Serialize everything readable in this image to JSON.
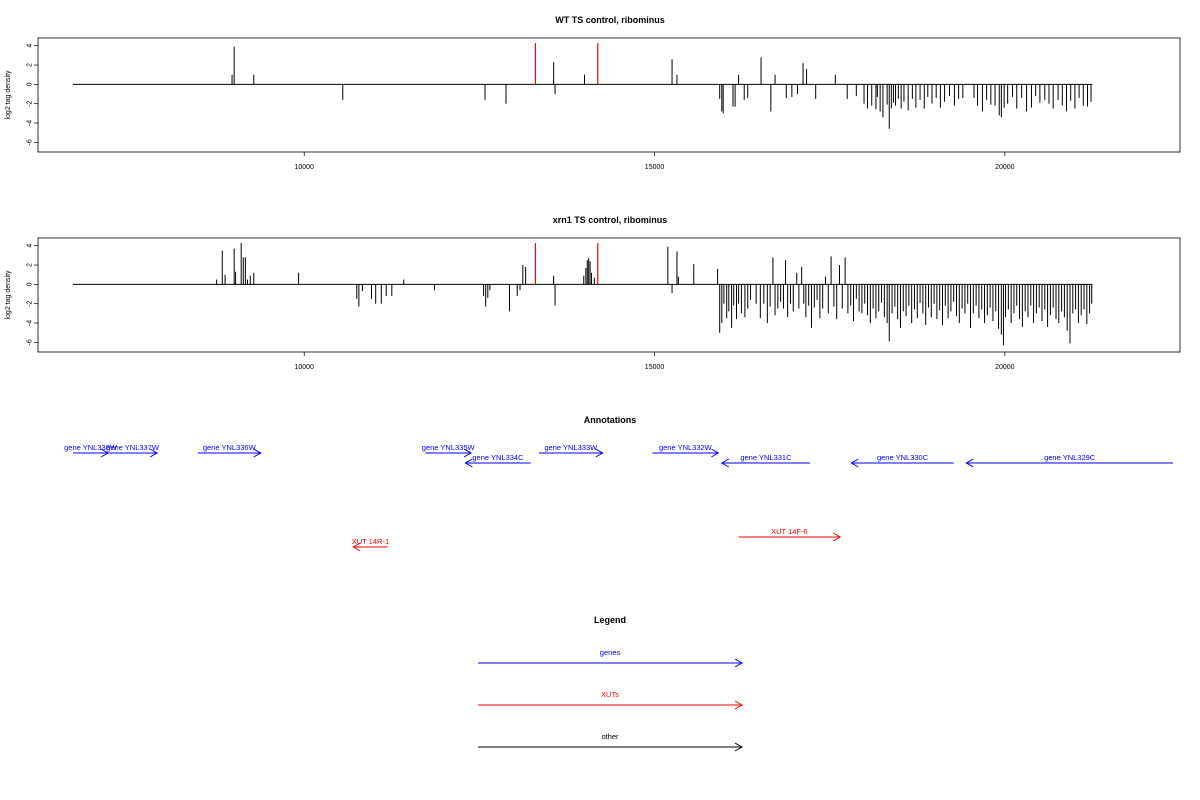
{
  "colors": {
    "gene": "#0000ff",
    "xut": "#ff0000",
    "other": "#000000",
    "marker": "#ff0000",
    "frame": "#000000"
  },
  "x_range": [
    6200,
    22500
  ],
  "marker_positions": [
    13300,
    14190
  ],
  "chart_data": [
    {
      "type": "bar",
      "title": "WT TS control, ribominus",
      "xlabel": "",
      "ylabel": "log2 tag density",
      "xticks": [
        10000,
        15000,
        20000
      ],
      "yticks": [
        4,
        2,
        0,
        -2,
        -4,
        -6
      ],
      "ylim": [
        -7,
        4.8
      ],
      "baseline": [
        6700,
        21250
      ],
      "bars": [
        [
          8970,
          1.0
        ],
        [
          9000,
          3.9
        ],
        [
          9280,
          1.0
        ],
        [
          10550,
          -1.6
        ],
        [
          12580,
          -1.6
        ],
        [
          12880,
          -2.0
        ],
        [
          13560,
          2.3
        ],
        [
          13580,
          -1.0
        ],
        [
          14000,
          1.0
        ],
        [
          15250,
          2.6
        ],
        [
          15320,
          1.0
        ],
        [
          15930,
          -1.5
        ],
        [
          15960,
          -2.8
        ],
        [
          15980,
          -3.0
        ],
        [
          16120,
          -2.3
        ],
        [
          16150,
          -2.3
        ],
        [
          16200,
          1.0
        ],
        [
          16280,
          -1.6
        ],
        [
          16330,
          -1.4
        ],
        [
          16520,
          2.8
        ],
        [
          16660,
          -2.8
        ],
        [
          16720,
          1.0
        ],
        [
          16880,
          -1.4
        ],
        [
          16960,
          -1.3
        ],
        [
          17040,
          -1.0
        ],
        [
          17120,
          2.2
        ],
        [
          17170,
          1.6
        ],
        [
          17300,
          -1.5
        ],
        [
          17580,
          1.0
        ],
        [
          17750,
          -1.5
        ],
        [
          17880,
          -1.2
        ],
        [
          17990,
          -2.0
        ],
        [
          18040,
          -2.5
        ],
        [
          18100,
          -2.2
        ],
        [
          18160,
          -2.6
        ],
        [
          18180,
          -1.3
        ],
        [
          18220,
          -2.8
        ],
        [
          18260,
          -3.4
        ],
        [
          18320,
          -2.1
        ],
        [
          18350,
          -4.6
        ],
        [
          18380,
          -2.5
        ],
        [
          18410,
          -1.9
        ],
        [
          18440,
          -2.2
        ],
        [
          18480,
          -1.5
        ],
        [
          18520,
          -2.5
        ],
        [
          18560,
          -1.8
        ],
        [
          18620,
          -2.7
        ],
        [
          18680,
          -1.5
        ],
        [
          18730,
          -2.4
        ],
        [
          18790,
          -1.6
        ],
        [
          18850,
          -2.5
        ],
        [
          18900,
          -1.3
        ],
        [
          18960,
          -2.0
        ],
        [
          19020,
          -1.4
        ],
        [
          19080,
          -2.4
        ],
        [
          19140,
          -1.8
        ],
        [
          19210,
          -1.2
        ],
        [
          19280,
          -2.2
        ],
        [
          19340,
          -1.5
        ],
        [
          19400,
          -1.4
        ],
        [
          19560,
          -1.4
        ],
        [
          19610,
          -2.2
        ],
        [
          19680,
          -2.8
        ],
        [
          19740,
          -1.6
        ],
        [
          19800,
          -2.1
        ],
        [
          19860,
          -2.2
        ],
        [
          19920,
          -3.2
        ],
        [
          19950,
          -3.4
        ],
        [
          19990,
          -2.4
        ],
        [
          20040,
          -2.0
        ],
        [
          20110,
          -1.3
        ],
        [
          20170,
          -2.5
        ],
        [
          20240,
          -1.4
        ],
        [
          20310,
          -2.8
        ],
        [
          20380,
          -2.4
        ],
        [
          20440,
          -1.2
        ],
        [
          20500,
          -1.9
        ],
        [
          20570,
          -1.6
        ],
        [
          20630,
          -2.0
        ],
        [
          20690,
          -2.5
        ],
        [
          20760,
          -1.6
        ],
        [
          20820,
          -2.2
        ],
        [
          20880,
          -2.8
        ],
        [
          20940,
          -1.7
        ],
        [
          21000,
          -2.5
        ],
        [
          21060,
          -1.4
        ],
        [
          21120,
          -2.2
        ],
        [
          21180,
          -2.3
        ],
        [
          21230,
          -1.8
        ]
      ]
    },
    {
      "type": "bar",
      "title": "xrn1 TS control, ribominus",
      "xlabel": "",
      "ylabel": "log2 tag density",
      "xticks": [
        10000,
        15000,
        20000
      ],
      "yticks": [
        4,
        2,
        0,
        -2,
        -4,
        -6
      ],
      "ylim": [
        -7,
        4.8
      ],
      "baseline": [
        6700,
        21250
      ],
      "bars": [
        [
          8750,
          0.5
        ],
        [
          8830,
          3.5
        ],
        [
          8870,
          1.0
        ],
        [
          9000,
          3.7
        ],
        [
          9020,
          1.3
        ],
        [
          9100,
          4.3
        ],
        [
          9130,
          2.8
        ],
        [
          9160,
          2.8
        ],
        [
          9190,
          0.5
        ],
        [
          9230,
          0.9
        ],
        [
          9280,
          1.2
        ],
        [
          9920,
          1.2
        ],
        [
          10750,
          -1.5
        ],
        [
          10780,
          -2.3
        ],
        [
          10830,
          -0.7
        ],
        [
          10960,
          -1.5
        ],
        [
          11020,
          -2.0
        ],
        [
          11100,
          -2.0
        ],
        [
          11170,
          -1.2
        ],
        [
          11250,
          -1.2
        ],
        [
          11420,
          0.5
        ],
        [
          11860,
          -0.6
        ],
        [
          12560,
          -1.2
        ],
        [
          12590,
          -2.3
        ],
        [
          12620,
          -1.4
        ],
        [
          12650,
          -0.6
        ],
        [
          12930,
          -2.8
        ],
        [
          13040,
          -1.2
        ],
        [
          13080,
          -0.6
        ],
        [
          13120,
          2.0
        ],
        [
          13160,
          1.8
        ],
        [
          13560,
          0.9
        ],
        [
          13580,
          -2.2
        ],
        [
          13990,
          0.9
        ],
        [
          14020,
          1.7
        ],
        [
          14040,
          2.5
        ],
        [
          14060,
          2.7
        ],
        [
          14080,
          2.4
        ],
        [
          14100,
          1.2
        ],
        [
          14140,
          0.7
        ],
        [
          15190,
          3.9
        ],
        [
          15250,
          -0.9
        ],
        [
          15320,
          3.4
        ],
        [
          15340,
          0.8
        ],
        [
          15560,
          2.1
        ],
        [
          15900,
          1.6
        ],
        [
          15930,
          -5.0
        ],
        [
          15960,
          -4.0
        ],
        [
          15990,
          -2.0
        ],
        [
          16030,
          -3.5
        ],
        [
          16060,
          -2.8
        ],
        [
          16100,
          -4.5
        ],
        [
          16130,
          -2.2
        ],
        [
          16170,
          -3.6
        ],
        [
          16200,
          -2.0
        ],
        [
          16240,
          -3.0
        ],
        [
          16290,
          -3.4
        ],
        [
          16330,
          -2.5
        ],
        [
          16370,
          -1.6
        ],
        [
          16450,
          -2.0
        ],
        [
          16510,
          -3.5
        ],
        [
          16560,
          -2.0
        ],
        [
          16610,
          -4.0
        ],
        [
          16650,
          -2.3
        ],
        [
          16690,
          2.8
        ],
        [
          16720,
          -3.2
        ],
        [
          16760,
          -2.5
        ],
        [
          16800,
          -1.8
        ],
        [
          16840,
          -2.5
        ],
        [
          16870,
          2.5
        ],
        [
          16900,
          -3.4
        ],
        [
          16940,
          -2.0
        ],
        [
          16980,
          -2.8
        ],
        [
          17030,
          1.2
        ],
        [
          17060,
          -2.5
        ],
        [
          17100,
          1.8
        ],
        [
          17130,
          -2.0
        ],
        [
          17160,
          -3.4
        ],
        [
          17200,
          -2.2
        ],
        [
          17240,
          -4.5
        ],
        [
          17280,
          -2.4
        ],
        [
          17320,
          -1.6
        ],
        [
          17360,
          -3.5
        ],
        [
          17400,
          -2.5
        ],
        [
          17440,
          0.8
        ],
        [
          17480,
          -3.0
        ],
        [
          17520,
          2.9
        ],
        [
          17560,
          -2.3
        ],
        [
          17600,
          -3.6
        ],
        [
          17640,
          2.0
        ],
        [
          17680,
          -2.5
        ],
        [
          17720,
          2.8
        ],
        [
          17760,
          -3.0
        ],
        [
          17800,
          -2.2
        ],
        [
          17840,
          -3.8
        ],
        [
          17880,
          -1.5
        ],
        [
          17920,
          -2.8
        ],
        [
          17960,
          -3.0
        ],
        [
          18000,
          -2.0
        ],
        [
          18040,
          -3.2
        ],
        [
          18080,
          -4.0
        ],
        [
          18120,
          -2.5
        ],
        [
          18160,
          -3.5
        ],
        [
          18200,
          -2.8
        ],
        [
          18240,
          -1.9
        ],
        [
          18280,
          -3.4
        ],
        [
          18320,
          -4.0
        ],
        [
          18350,
          -5.9
        ],
        [
          18390,
          -3.0
        ],
        [
          18430,
          -2.3
        ],
        [
          18470,
          -3.6
        ],
        [
          18510,
          -4.5
        ],
        [
          18550,
          -2.8
        ],
        [
          18590,
          -3.3
        ],
        [
          18630,
          -2.2
        ],
        [
          18670,
          -4.0
        ],
        [
          18710,
          -2.6
        ],
        [
          18750,
          -3.5
        ],
        [
          18790,
          -1.9
        ],
        [
          18830,
          -3.0
        ],
        [
          18870,
          -4.2
        ],
        [
          18910,
          -2.4
        ],
        [
          18950,
          -3.4
        ],
        [
          18990,
          -2.0
        ],
        [
          19030,
          -3.6
        ],
        [
          19070,
          -2.7
        ],
        [
          19110,
          -4.2
        ],
        [
          19150,
          -2.2
        ],
        [
          19190,
          -3.5
        ],
        [
          19230,
          -2.8
        ],
        [
          19270,
          -1.8
        ],
        [
          19310,
          -3.3
        ],
        [
          19350,
          -4.0
        ],
        [
          19390,
          -2.5
        ],
        [
          19430,
          -3.0
        ],
        [
          19470,
          -2.0
        ],
        [
          19510,
          -4.5
        ],
        [
          19550,
          -3.0
        ],
        [
          19590,
          -2.2
        ],
        [
          19630,
          -3.5
        ],
        [
          19670,
          -2.6
        ],
        [
          19710,
          -4.0
        ],
        [
          19750,
          -3.2
        ],
        [
          19790,
          -2.4
        ],
        [
          19830,
          -3.8
        ],
        [
          19870,
          -2.8
        ],
        [
          19910,
          -4.6
        ],
        [
          19950,
          -5.2
        ],
        [
          19980,
          -6.3
        ],
        [
          20010,
          -3.4
        ],
        [
          20050,
          -2.6
        ],
        [
          20090,
          -4.0
        ],
        [
          20130,
          -3.0
        ],
        [
          20170,
          -2.2
        ],
        [
          20210,
          -3.6
        ],
        [
          20250,
          -4.4
        ],
        [
          20290,
          -2.8
        ],
        [
          20330,
          -3.4
        ],
        [
          20370,
          -2.2
        ],
        [
          20410,
          -4.0
        ],
        [
          20450,
          -3.0
        ],
        [
          20490,
          -2.4
        ],
        [
          20530,
          -3.8
        ],
        [
          20570,
          -2.6
        ],
        [
          20610,
          -4.4
        ],
        [
          20650,
          -3.2
        ],
        [
          20690,
          -2.4
        ],
        [
          20730,
          -3.6
        ],
        [
          20770,
          -4.0
        ],
        [
          20810,
          -2.8
        ],
        [
          20850,
          -3.4
        ],
        [
          20890,
          -4.8
        ],
        [
          20930,
          -6.1
        ],
        [
          20970,
          -3.0
        ],
        [
          21010,
          -2.6
        ],
        [
          21050,
          -4.0
        ],
        [
          21090,
          -3.2
        ],
        [
          21130,
          -2.6
        ],
        [
          21170,
          -4.1
        ],
        [
          21210,
          -3.0
        ],
        [
          21240,
          -2.0
        ]
      ]
    }
  ],
  "annotations": {
    "title": "Annotations",
    "genes": [
      {
        "label": "gene YNL338W",
        "strand": "+",
        "start": 6700,
        "end": 7200,
        "row": 0
      },
      {
        "label": "gene YNL337W",
        "strand": "+",
        "start": 7200,
        "end": 7900,
        "row": 0
      },
      {
        "label": "gene YNL336W",
        "strand": "+",
        "start": 8480,
        "end": 9380,
        "row": 0
      },
      {
        "label": "gene YNL335W",
        "strand": "+",
        "start": 11730,
        "end": 12380,
        "row": 0
      },
      {
        "label": "gene YNL334C",
        "strand": "-",
        "start": 12300,
        "end": 13230,
        "row": 1
      },
      {
        "label": "gene YNL333W",
        "strand": "+",
        "start": 13350,
        "end": 14260,
        "row": 0
      },
      {
        "label": "gene YNL332W",
        "strand": "+",
        "start": 14970,
        "end": 15910,
        "row": 0
      },
      {
        "label": "gene YNL331C",
        "strand": "-",
        "start": 15960,
        "end": 17220,
        "row": 1
      },
      {
        "label": "gene YNL330C",
        "strand": "-",
        "start": 17810,
        "end": 19270,
        "row": 1
      },
      {
        "label": "gene YNL329C",
        "strand": "-",
        "start": 19450,
        "end": 22400,
        "row": 1
      }
    ],
    "xuts": [
      {
        "label": "XUT 14R-1",
        "strand": "-",
        "start": 10700,
        "end": 11190,
        "row": 2
      },
      {
        "label": "XUT 14F-6",
        "strand": "+",
        "start": 16200,
        "end": 17650,
        "row": 3
      }
    ]
  },
  "legend": {
    "title": "Legend",
    "items": [
      {
        "label": "genes",
        "kind": "gene"
      },
      {
        "label": "XUTs",
        "kind": "xut"
      },
      {
        "label": "other",
        "kind": "other"
      }
    ]
  }
}
